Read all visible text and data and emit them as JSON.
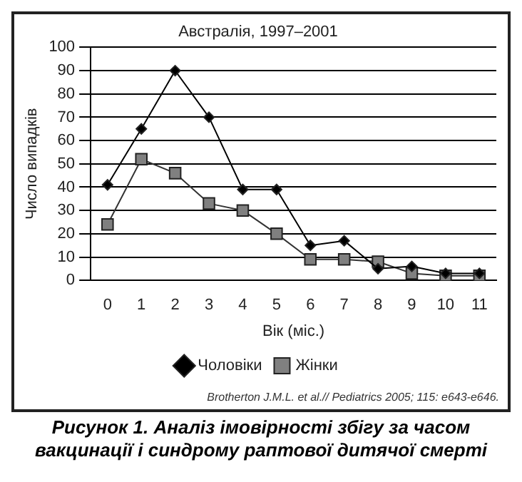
{
  "chart_data": {
    "type": "line",
    "title": "Австралія, 1997–2001",
    "xlabel": "Вік (міс.)",
    "ylabel": "Число випадків",
    "categories": [
      "0",
      "1",
      "2",
      "3",
      "4",
      "5",
      "6",
      "7",
      "8",
      "9",
      "10",
      "11"
    ],
    "series": [
      {
        "name": "Чоловіки",
        "color": "#000000",
        "marker": "diamond",
        "values": [
          41,
          65,
          90,
          70,
          39,
          39,
          15,
          17,
          5,
          6,
          3,
          3
        ]
      },
      {
        "name": "Жінки",
        "color": "#808080",
        "marker": "square",
        "values": [
          24,
          52,
          46,
          33,
          30,
          20,
          9,
          9,
          8,
          3,
          2,
          2
        ]
      }
    ],
    "ylim": [
      0,
      100
    ],
    "yticks": [
      0,
      10,
      20,
      30,
      40,
      50,
      60,
      70,
      80,
      90,
      100
    ],
    "grid": "y",
    "legend": "bottom",
    "annotations": [
      "Brotherton J.M.L. et al.// Pediatrics 2005; 115: e643-e646.",
      "Рисунок 1. Аналіз імовірності збігу за часом вакцинації і синдрому раптової дитячої смерті"
    ]
  }
}
